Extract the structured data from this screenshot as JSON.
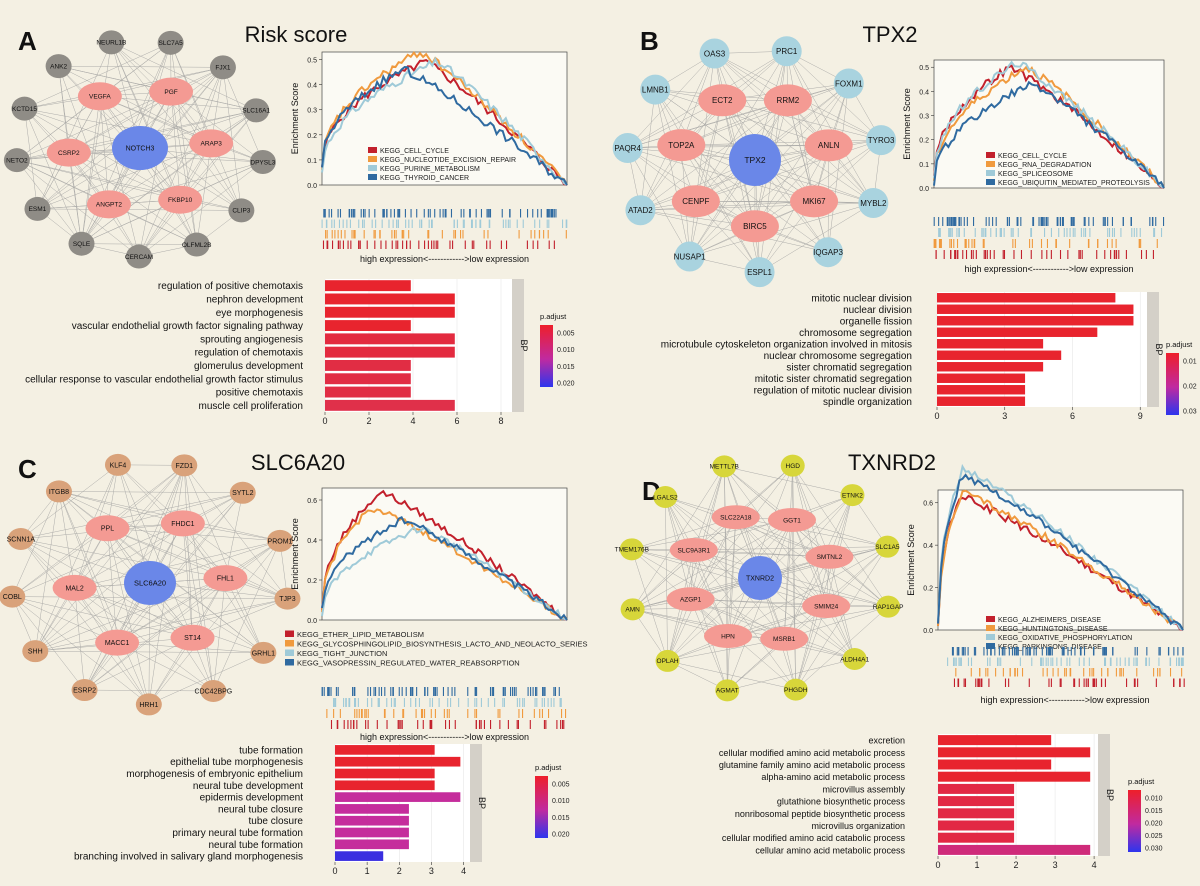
{
  "panels": [
    {
      "id": "A",
      "letter": "A",
      "title": "Risk score",
      "network": {
        "center": "NOTCH3",
        "inner": [
          "PGF",
          "ARAP3",
          "FKBP10",
          "ANGPT2",
          "CSRP2",
          "VEGFA"
        ],
        "outer": [
          "SLC7A5",
          "FJX1",
          "SLC16A1",
          "DPYSL3",
          "CLIP3",
          "OLFML2B",
          "CERCAM",
          "SQLE",
          "ESM1",
          "NETO2",
          "KCTD15",
          "ANK2",
          "NEURL1B"
        ],
        "center_color": "#6a87e8",
        "inner_color": "#f49a93",
        "outer_color": "#8f8c86"
      },
      "gsea": {
        "ylabel": "Enrichment Score",
        "yticks": [
          0.0,
          0.1,
          0.2,
          0.3,
          0.4,
          0.5
        ],
        "xlabel": "high expression<------------>low expression",
        "series": [
          {
            "name": "KEGG_CELL_CYCLE",
            "color": "#c2202c",
            "peak": 0.49,
            "peak_at": 0.42,
            "start": 0.07
          },
          {
            "name": "KEGG_NUCLEOTIDE_EXCISION_REPAIR",
            "color": "#f09a3e",
            "peak": 0.53,
            "peak_at": 0.4,
            "start": 0.06
          },
          {
            "name": "KEGG_PURINE_METABOLISM",
            "color": "#9fcad8",
            "peak": 0.49,
            "peak_at": 0.47,
            "start": 0.05
          },
          {
            "name": "KEGG_THYROID_CANCER",
            "color": "#2f6aa0",
            "peak": 0.46,
            "peak_at": 0.33,
            "start": 0.07
          }
        ]
      },
      "bars": {
        "facet": "BP",
        "legend_title": "p.adjust",
        "legend_ticks": [
          "0.005",
          "0.010",
          "0.015",
          "0.020"
        ],
        "xticks": [
          0,
          2,
          4,
          6,
          8
        ],
        "xmax": 8.5,
        "terms": [
          {
            "label": "regulation of positive chemotaxis",
            "value": 3.9,
            "color": "#e8242e"
          },
          {
            "label": "nephron development",
            "value": 5.9,
            "color": "#e8242e"
          },
          {
            "label": "eye morphogenesis",
            "value": 5.9,
            "color": "#e8242e"
          },
          {
            "label": "vascular endothelial growth factor signaling pathway",
            "value": 3.9,
            "color": "#e8242e"
          },
          {
            "label": "sprouting angiogenesis",
            "value": 5.9,
            "color": "#e32a3f"
          },
          {
            "label": "regulation of chemotaxis",
            "value": 5.9,
            "color": "#e32a3f"
          },
          {
            "label": "glomerulus development",
            "value": 3.9,
            "color": "#e12d44"
          },
          {
            "label": "cellular response to vascular endothelial growth factor stimulus",
            "value": 3.9,
            "color": "#e12d44"
          },
          {
            "label": "positive chemotaxis",
            "value": 3.9,
            "color": "#e12d44"
          },
          {
            "label": "muscle cell proliferation",
            "value": 5.9,
            "color": "#e0304a"
          }
        ]
      }
    },
    {
      "id": "B",
      "letter": "B",
      "title": "TPX2",
      "network": {
        "center": "TPX2",
        "inner": [
          "RRM2",
          "ANLN",
          "MKI67",
          "BIRC5",
          "CENPF",
          "TOP2A",
          "ECT2"
        ],
        "outer": [
          "PRC1",
          "FOXM1",
          "TYRO3",
          "MYBL2",
          "IQGAP3",
          "ESPL1",
          "NUSAP1",
          "ATAD2",
          "PAQR4",
          "LMNB1",
          "OAS3"
        ],
        "center_color": "#6a87e8",
        "inner_color": "#f49a93",
        "outer_color": "#a9d3df"
      },
      "gsea": {
        "ylabel": "Enrichment Score",
        "yticks": [
          0.0,
          0.1,
          0.2,
          0.3,
          0.4,
          0.5
        ],
        "xlabel": "high expression<------------>low expression",
        "series": [
          {
            "name": "KEGG_CELL_CYCLE",
            "color": "#c2202c",
            "peak": 0.5,
            "peak_at": 0.33,
            "start": 0.05
          },
          {
            "name": "KEGG_RNA_DEGRADATION",
            "color": "#f09a3e",
            "peak": 0.5,
            "peak_at": 0.4,
            "start": 0.03
          },
          {
            "name": "KEGG_SPLICEOSOME",
            "color": "#9fcad8",
            "peak": 0.52,
            "peak_at": 0.36,
            "start": 0.04
          },
          {
            "name": "KEGG_UBIQUITIN_MEDIATED_PROTEOLYSIS",
            "color": "#2f6aa0",
            "peak": 0.43,
            "peak_at": 0.43,
            "start": 0.01
          }
        ]
      },
      "bars": {
        "facet": "BP",
        "legend_title": "p.adjust",
        "legend_ticks": [
          "0.01",
          "0.02",
          "0.03"
        ],
        "xticks": [
          0,
          3,
          6,
          9
        ],
        "xmax": 9.3,
        "terms": [
          {
            "label": "mitotic nuclear division",
            "value": 7.9,
            "color": "#e8242e"
          },
          {
            "label": "nuclear division",
            "value": 8.7,
            "color": "#e8242e"
          },
          {
            "label": "organelle fission",
            "value": 8.7,
            "color": "#e8242e"
          },
          {
            "label": "chromosome segregation",
            "value": 7.1,
            "color": "#e8242e"
          },
          {
            "label": "microtubule cytoskeleton organization involved in mitosis",
            "value": 4.7,
            "color": "#e8242e"
          },
          {
            "label": "nuclear chromosome segregation",
            "value": 5.5,
            "color": "#e8242e"
          },
          {
            "label": "sister chromatid segregation",
            "value": 4.7,
            "color": "#e8242e"
          },
          {
            "label": "mitotic sister chromatid segregation",
            "value": 3.9,
            "color": "#e8242e"
          },
          {
            "label": "regulation of mitotic nuclear division",
            "value": 3.9,
            "color": "#e8242e"
          },
          {
            "label": "spindle organization",
            "value": 3.9,
            "color": "#e8242e"
          }
        ]
      }
    },
    {
      "id": "C",
      "letter": "C",
      "title": "SLC6A20",
      "network": {
        "center": "SLC6A20",
        "inner": [
          "FHDC1",
          "FHL1",
          "ST14",
          "MACC1",
          "MAL2",
          "PPL"
        ],
        "outer": [
          "FZD1",
          "SYTL2",
          "PROM1",
          "TJP3",
          "GRHL1",
          "CDC42BPG",
          "HRH1",
          "ESRP2",
          "SHH",
          "COBL",
          "SCNN1A",
          "ITGB8",
          "KLF4"
        ],
        "center_color": "#6a87e8",
        "inner_color": "#f49a93",
        "outer_color": "#d9a27a"
      },
      "gsea": {
        "ylabel": "Enrichment Score",
        "yticks": [
          0.0,
          0.2,
          0.4,
          0.6
        ],
        "xlabel": "high expression<------------>low expression",
        "series": [
          {
            "name": "KEGG_ETHER_LIPID_METABOLISM",
            "color": "#c2202c",
            "peak": 0.64,
            "peak_at": 0.24,
            "start": 0.05
          },
          {
            "name": "KEGG_GLYCOSPHINGOLIPID_BIOSYNTHESIS_LACTO_AND_NEOLACTO_SERIES",
            "color": "#f09a3e",
            "peak": 0.56,
            "peak_at": 0.2,
            "start": 0.04
          },
          {
            "name": "KEGG_TIGHT_JUNCTION",
            "color": "#9fcad8",
            "peak": 0.46,
            "peak_at": 0.4,
            "start": 0.02
          },
          {
            "name": "KEGG_VASOPRESSIN_REGULATED_WATER_REABSORPTION",
            "color": "#2f6aa0",
            "peak": 0.5,
            "peak_at": 0.33,
            "start": 0.06
          }
        ]
      },
      "bars": {
        "facet": "BP",
        "legend_title": "p.adjust",
        "legend_ticks": [
          "0.005",
          "0.010",
          "0.015",
          "0.020"
        ],
        "xticks": [
          0,
          1,
          2,
          3,
          4
        ],
        "xmax": 4.2,
        "terms": [
          {
            "label": "tube formation",
            "value": 3.1,
            "color": "#e8242e"
          },
          {
            "label": "epithelial tube morphogenesis",
            "value": 3.9,
            "color": "#e8242e"
          },
          {
            "label": "morphogenesis of embryonic epithelium",
            "value": 3.1,
            "color": "#e8242e"
          },
          {
            "label": "neural tube development",
            "value": 3.1,
            "color": "#e8242e"
          },
          {
            "label": "epidermis development",
            "value": 3.9,
            "color": "#c52d9c"
          },
          {
            "label": "neural tube closure",
            "value": 2.3,
            "color": "#c52d9c"
          },
          {
            "label": "tube closure",
            "value": 2.3,
            "color": "#c52d9c"
          },
          {
            "label": "primary neural tube formation",
            "value": 2.3,
            "color": "#c52d9c"
          },
          {
            "label": "neural tube formation",
            "value": 2.3,
            "color": "#c52d9c"
          },
          {
            "label": "branching involved in salivary gland morphogenesis",
            "value": 1.5,
            "color": "#3a2fe0"
          }
        ]
      }
    },
    {
      "id": "D",
      "letter": "D",
      "title": "TXNRD2",
      "network": {
        "center": "TXNRD2",
        "inner": [
          "GGT1",
          "SMTNL2",
          "SMIM24",
          "MSRB1",
          "HPN",
          "AZGP1",
          "SLC9A3R1",
          "SLC22A18"
        ],
        "outer": [
          "HGD",
          "ETNK2",
          "SLC1A5",
          "RAP1GAP",
          "ALDH4A1",
          "PHGDH",
          "AGMAT",
          "OPLAH",
          "AMN",
          "TMEM176B",
          "LGALS2",
          "METTL7B"
        ],
        "center_color": "#6a87e8",
        "inner_color": "#f49a93",
        "outer_color": "#d7d63a"
      },
      "gsea": {
        "ylabel": "Enrichment Score",
        "yticks": [
          0.0,
          0.2,
          0.4,
          0.6
        ],
        "xlabel": "high expression<------------>low expression",
        "series": [
          {
            "name": "KEGG_ALZHEIMERS_DISEASE",
            "color": "#c2202c",
            "peak": 0.63,
            "peak_at": 0.09,
            "start": 0.02
          },
          {
            "name": "KEGG_HUNTINGTONS_DISEASE",
            "color": "#f09a3e",
            "peak": 0.65,
            "peak_at": 0.1,
            "start": 0.02
          },
          {
            "name": "KEGG_OXIDATIVE_PHOSPHORYLATION",
            "color": "#9fcad8",
            "peak": 0.76,
            "peak_at": 0.1,
            "start": 0.03
          },
          {
            "name": "KEGG_PARKINSONS_DISEASE",
            "color": "#2f6aa0",
            "peak": 0.73,
            "peak_at": 0.1,
            "start": 0.03
          }
        ]
      },
      "bars": {
        "facet": "BP",
        "legend_title": "p.adjust",
        "legend_ticks": [
          "0.010",
          "0.015",
          "0.020",
          "0.025",
          "0.030"
        ],
        "xticks": [
          0,
          1,
          2,
          3,
          4
        ],
        "xmax": 4.1,
        "terms": [
          {
            "label": "excretion",
            "value": 2.9,
            "color": "#e8242e"
          },
          {
            "label": "cellular modified amino acid metabolic process",
            "value": 3.9,
            "color": "#e8242e"
          },
          {
            "label": "glutamine family amino acid metabolic process",
            "value": 2.9,
            "color": "#e8242e"
          },
          {
            "label": "alpha-amino acid metabolic process",
            "value": 3.9,
            "color": "#e8242e"
          },
          {
            "label": "microvillus assembly",
            "value": 1.95,
            "color": "#e22844"
          },
          {
            "label": "glutathione biosynthetic process",
            "value": 1.95,
            "color": "#e22844"
          },
          {
            "label": "nonribosomal peptide biosynthetic process",
            "value": 1.95,
            "color": "#e22844"
          },
          {
            "label": "microvillus organization",
            "value": 1.95,
            "color": "#e22844"
          },
          {
            "label": "cellular modified amino acid catabolic process",
            "value": 1.95,
            "color": "#e22844"
          },
          {
            "label": "cellular amino acid metabolic process",
            "value": 3.9,
            "color": "#cf2b7a"
          }
        ]
      }
    }
  ],
  "chart_data": [
    {
      "type": "bar",
      "panel": "A",
      "categories": [
        "regulation of positive chemotaxis",
        "nephron development",
        "eye morphogenesis",
        "vascular endothelial growth factor signaling pathway",
        "sprouting angiogenesis",
        "regulation of chemotaxis",
        "glomerulus development",
        "cellular response to vascular endothelial growth factor stimulus",
        "positive chemotaxis",
        "muscle cell proliferation"
      ],
      "values": [
        3.9,
        5.9,
        5.9,
        3.9,
        5.9,
        5.9,
        3.9,
        3.9,
        3.9,
        5.9
      ],
      "legend": "p.adjust",
      "facet": "BP"
    },
    {
      "type": "bar",
      "panel": "B",
      "categories": [
        "mitotic nuclear division",
        "nuclear division",
        "organelle fission",
        "chromosome segregation",
        "microtubule cytoskeleton organization involved in mitosis",
        "nuclear chromosome segregation",
        "sister chromatid segregation",
        "mitotic sister chromatid segregation",
        "regulation of mitotic nuclear division",
        "spindle organization"
      ],
      "values": [
        7.9,
        8.7,
        8.7,
        7.1,
        4.7,
        5.5,
        4.7,
        3.9,
        3.9,
        3.9
      ],
      "legend": "p.adjust",
      "facet": "BP"
    },
    {
      "type": "bar",
      "panel": "C",
      "categories": [
        "tube formation",
        "epithelial tube morphogenesis",
        "morphogenesis of embryonic epithelium",
        "neural tube development",
        "epidermis development",
        "neural tube closure",
        "tube closure",
        "primary neural tube formation",
        "neural tube formation",
        "branching involved in salivary gland morphogenesis"
      ],
      "values": [
        3.1,
        3.9,
        3.1,
        3.1,
        3.9,
        2.3,
        2.3,
        2.3,
        2.3,
        1.5
      ],
      "legend": "p.adjust",
      "facet": "BP"
    },
    {
      "type": "bar",
      "panel": "D",
      "categories": [
        "excretion",
        "cellular modified amino acid metabolic process",
        "glutamine family amino acid metabolic process",
        "alpha-amino acid metabolic process",
        "microvillus assembly",
        "glutathione biosynthetic process",
        "nonribosomal peptide biosynthetic process",
        "microvillus organization",
        "cellular modified amino acid catabolic process",
        "cellular amino acid metabolic process"
      ],
      "values": [
        2.9,
        3.9,
        2.9,
        3.9,
        1.95,
        1.95,
        1.95,
        1.95,
        1.95,
        3.9
      ],
      "legend": "p.adjust",
      "facet": "BP"
    },
    {
      "type": "line",
      "panel": "A",
      "ylabel": "Enrichment Score",
      "series_names": [
        "KEGG_CELL_CYCLE",
        "KEGG_NUCLEOTIDE_EXCISION_REPAIR",
        "KEGG_PURINE_METABOLISM",
        "KEGG_THYROID_CANCER"
      ]
    },
    {
      "type": "line",
      "panel": "B",
      "ylabel": "Enrichment Score",
      "series_names": [
        "KEGG_CELL_CYCLE",
        "KEGG_RNA_DEGRADATION",
        "KEGG_SPLICEOSOME",
        "KEGG_UBIQUITIN_MEDIATED_PROTEOLYSIS"
      ]
    },
    {
      "type": "line",
      "panel": "C",
      "ylabel": "Enrichment Score",
      "series_names": [
        "KEGG_ETHER_LIPID_METABOLISM",
        "KEGG_GLYCOSPHINGOLIPID_BIOSYNTHESIS_LACTO_AND_NEOLACTO_SERIES",
        "KEGG_TIGHT_JUNCTION",
        "KEGG_VASOPRESSIN_REGULATED_WATER_REABSORPTION"
      ]
    },
    {
      "type": "line",
      "panel": "D",
      "ylabel": "Enrichment Score",
      "series_names": [
        "KEGG_ALZHEIMERS_DISEASE",
        "KEGG_HUNTINGTONS_DISEASE",
        "KEGG_OXIDATIVE_PHOSPHORYLATION",
        "KEGG_PARKINSONS_DISEASE"
      ]
    }
  ]
}
